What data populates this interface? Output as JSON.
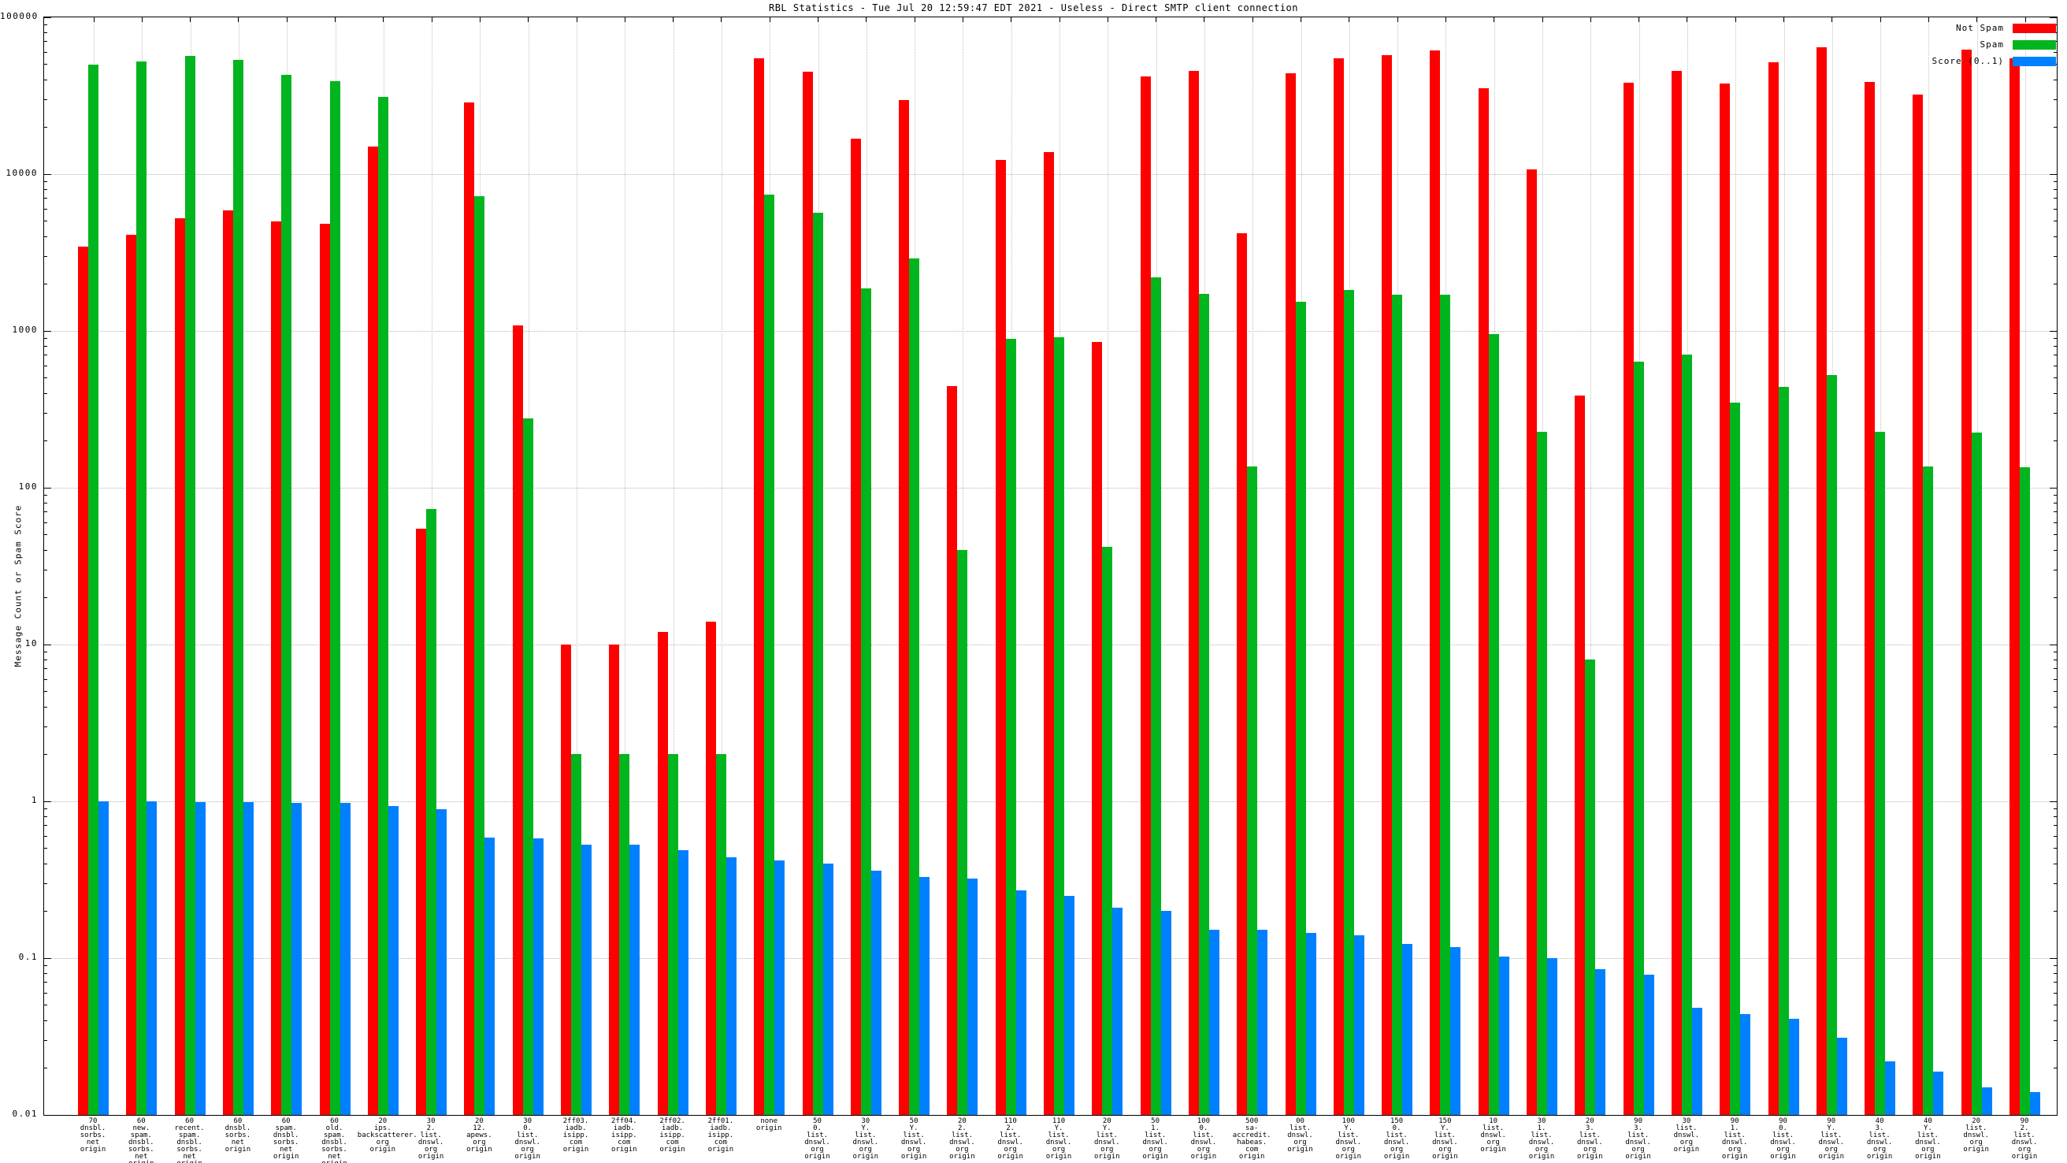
{
  "title": "RBL Statistics - Tue Jul 20 12:59:47 EDT 2021 - Useless - Direct SMTP client connection",
  "y_axis": {
    "label": "Message Count or Spam Score",
    "ticks": [
      "100000",
      "10000",
      "1000",
      "100",
      "10",
      "1",
      "0.1",
      "0.01"
    ],
    "min": 0.01,
    "max": 100000,
    "scale": "log"
  },
  "legend": [
    {
      "label": "Not Spam",
      "color": "#ff0000"
    },
    {
      "label": "Spam",
      "color": "#00b51e"
    },
    {
      "label": "Score (0..1)",
      "color": "#0080ff"
    }
  ],
  "chart_data": {
    "type": "bar",
    "scale": "log-y",
    "ylim": [
      0.01,
      100000
    ],
    "grid": "dotted, x and y",
    "legend_position": "top-right",
    "title": "RBL Statistics - Tue Jul 20 12:59:47 EDT 2021 - Useless - Direct SMTP client connection",
    "ylabel": "Message Count or Spam Score",
    "categories": [
      [
        "70",
        "dnsbl.",
        "sorbs.",
        "net",
        "origin"
      ],
      [
        "60",
        "new.",
        "spam.",
        "dnsbl.",
        "sorbs.",
        "net",
        "origin"
      ],
      [
        "60",
        "recent.",
        "spam.",
        "dnsbl.",
        "sorbs.",
        "net",
        "origin"
      ],
      [
        "60",
        "dnsbl.",
        "sorbs.",
        "net",
        "origin"
      ],
      [
        "60",
        "spam.",
        "dnsbl.",
        "sorbs.",
        "net",
        "origin"
      ],
      [
        "60",
        "old.",
        "spam.",
        "dnsbl.",
        "sorbs.",
        "net",
        "origin"
      ],
      [
        "20",
        "ips.",
        "backscatterer.",
        "org",
        "origin"
      ],
      [
        "30",
        "2.",
        "list.",
        "dnswl.",
        "org",
        "origin"
      ],
      [
        "20",
        "12.",
        "apews.",
        "org",
        "origin"
      ],
      [
        "30",
        "0.",
        "list.",
        "dnswl.",
        "org",
        "origin"
      ],
      [
        "2ff03.",
        "iadb.",
        "isipp.",
        "com",
        "origin"
      ],
      [
        "2ff04.",
        "iadb.",
        "isipp.",
        "com",
        "origin"
      ],
      [
        "2ff02.",
        "iadb.",
        "isipp.",
        "com",
        "origin"
      ],
      [
        "2ff01.",
        "iadb.",
        "isipp.",
        "com",
        "origin"
      ],
      [
        "none",
        "origin"
      ],
      [
        "50",
        "0.",
        "list.",
        "dnswl.",
        "org",
        "origin"
      ],
      [
        "30",
        "Y.",
        "list.",
        "dnswl.",
        "org",
        "origin"
      ],
      [
        "50",
        "Y.",
        "list.",
        "dnswl.",
        "org",
        "origin"
      ],
      [
        "20",
        "2.",
        "list.",
        "dnswl.",
        "org",
        "origin"
      ],
      [
        "110",
        "2.",
        "list.",
        "dnswl.",
        "org",
        "origin"
      ],
      [
        "110",
        "Y.",
        "list.",
        "dnswl.",
        "org",
        "origin"
      ],
      [
        "20",
        "Y.",
        "list.",
        "dnswl.",
        "org",
        "origin"
      ],
      [
        "50",
        "1.",
        "list.",
        "dnswl.",
        "org",
        "origin"
      ],
      [
        "100",
        "0.",
        "list.",
        "dnswl.",
        "org",
        "origin"
      ],
      [
        "500",
        "sa-accredit.",
        "habeas.",
        "com",
        "origin"
      ],
      [
        "00",
        "list.",
        "dnswl.",
        "org",
        "origin"
      ],
      [
        "100",
        "Y.",
        "list.",
        "dnswl.",
        "org",
        "origin"
      ],
      [
        "150",
        "0.",
        "list.",
        "dnswl.",
        "org",
        "origin"
      ],
      [
        "150",
        "Y.",
        "list.",
        "dnswl.",
        "org",
        "origin"
      ],
      [
        "10",
        "list.",
        "dnswl.",
        "org",
        "origin"
      ],
      [
        "30",
        "1.",
        "list.",
        "dnswl.",
        "org",
        "origin"
      ],
      [
        "20",
        "3.",
        "list.",
        "dnswl.",
        "org",
        "origin"
      ],
      [
        "90",
        "3.",
        "list.",
        "dnswl.",
        "org",
        "origin"
      ],
      [
        "30",
        "list.",
        "dnswl.",
        "org",
        "origin"
      ],
      [
        "90",
        "1.",
        "list.",
        "dnswl.",
        "org",
        "origin"
      ],
      [
        "90",
        "0.",
        "list.",
        "dnswl.",
        "org",
        "origin"
      ],
      [
        "90",
        "Y.",
        "list.",
        "dnswl.",
        "org",
        "origin"
      ],
      [
        "40",
        "3.",
        "list.",
        "dnswl.",
        "org",
        "origin"
      ],
      [
        "40",
        "Y.",
        "list.",
        "dnswl.",
        "org",
        "origin"
      ],
      [
        "20",
        "list.",
        "dnswl.",
        "org",
        "origin"
      ],
      [
        "90",
        "2.",
        "list.",
        "dnswl.",
        "org",
        "origin"
      ]
    ],
    "series": [
      {
        "name": "Not Spam",
        "color": "#ff0000",
        "values": [
          3440,
          4100,
          5250,
          5900,
          5000,
          4800,
          15000,
          55,
          28600,
          1090,
          10,
          10,
          12,
          14,
          55000,
          45000,
          16900,
          29600,
          445,
          12300,
          13800,
          850,
          42000,
          45500,
          4200,
          44000,
          54800,
          57500,
          61500,
          35300,
          10700,
          387,
          38300,
          45500,
          38000,
          51700,
          64400,
          38700,
          32000,
          62000,
          55000
        ]
      },
      {
        "name": "Spam",
        "color": "#00b51e",
        "values": [
          50000,
          52500,
          57000,
          53500,
          43000,
          39000,
          31000,
          73,
          7200,
          277,
          2,
          2,
          2,
          2,
          7400,
          5700,
          1870,
          2900,
          40,
          890,
          910,
          42,
          2200,
          1720,
          137,
          1530,
          1820,
          1700,
          1700,
          955,
          227,
          8,
          637,
          707,
          349,
          440,
          524,
          228,
          137,
          225,
          135
        ]
      },
      {
        "name": "Score (0..1)",
        "color": "#0080ff",
        "values": [
          1.0,
          1.0,
          0.99,
          0.99,
          0.98,
          0.98,
          0.93,
          0.89,
          0.59,
          0.58,
          0.53,
          0.53,
          0.49,
          0.44,
          0.42,
          0.4,
          0.36,
          0.33,
          0.32,
          0.27,
          0.25,
          0.21,
          0.2,
          0.152,
          0.151,
          0.145,
          0.14,
          0.123,
          0.117,
          0.102,
          0.1,
          0.085,
          0.078,
          0.048,
          0.044,
          0.041,
          0.031,
          0.022,
          0.019,
          0.015,
          0.014
        ]
      }
    ]
  }
}
